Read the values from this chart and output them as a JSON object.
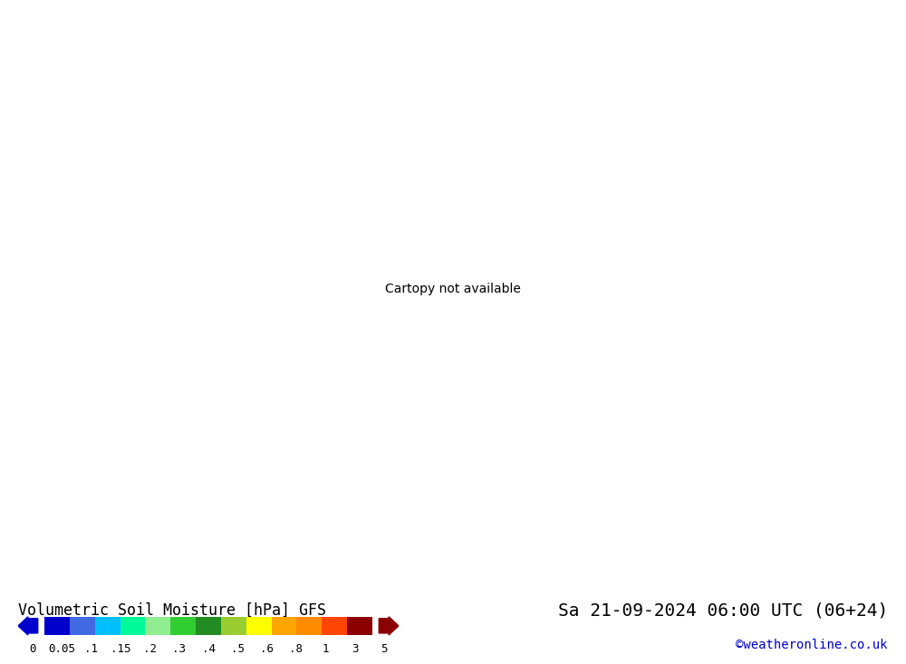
{
  "title": "Volumetric Soil Moisture [hPa] GFS",
  "date_label": "Sa 21-09-2024 06:00 UTC (06+24)",
  "copyright": "©weatheronline.co.uk",
  "colorbar_levels": [
    0,
    0.05,
    0.1,
    0.15,
    0.2,
    0.3,
    0.4,
    0.5,
    0.6,
    0.8,
    1,
    3,
    5
  ],
  "colorbar_labels": [
    "0",
    "0.05",
    ".1",
    ".15",
    ".2",
    ".3",
    ".4",
    ".5",
    ".6",
    ".8",
    "1",
    "3",
    "5"
  ],
  "colorbar_colors": [
    "#0000cd",
    "#4169e1",
    "#00bfff",
    "#00fa9a",
    "#90ee90",
    "#32cd32",
    "#228b22",
    "#9acd32",
    "#ffff00",
    "#ffa500",
    "#ff8c00",
    "#ff4500",
    "#8b0000"
  ],
  "background_color": "#d3d3d3",
  "map_background": "#d3d3d3",
  "land_color": "#d3d3d3",
  "figsize": [
    10.0,
    7.33
  ],
  "dpi": 100,
  "extent": [
    -12,
    5,
    49,
    61.5
  ]
}
